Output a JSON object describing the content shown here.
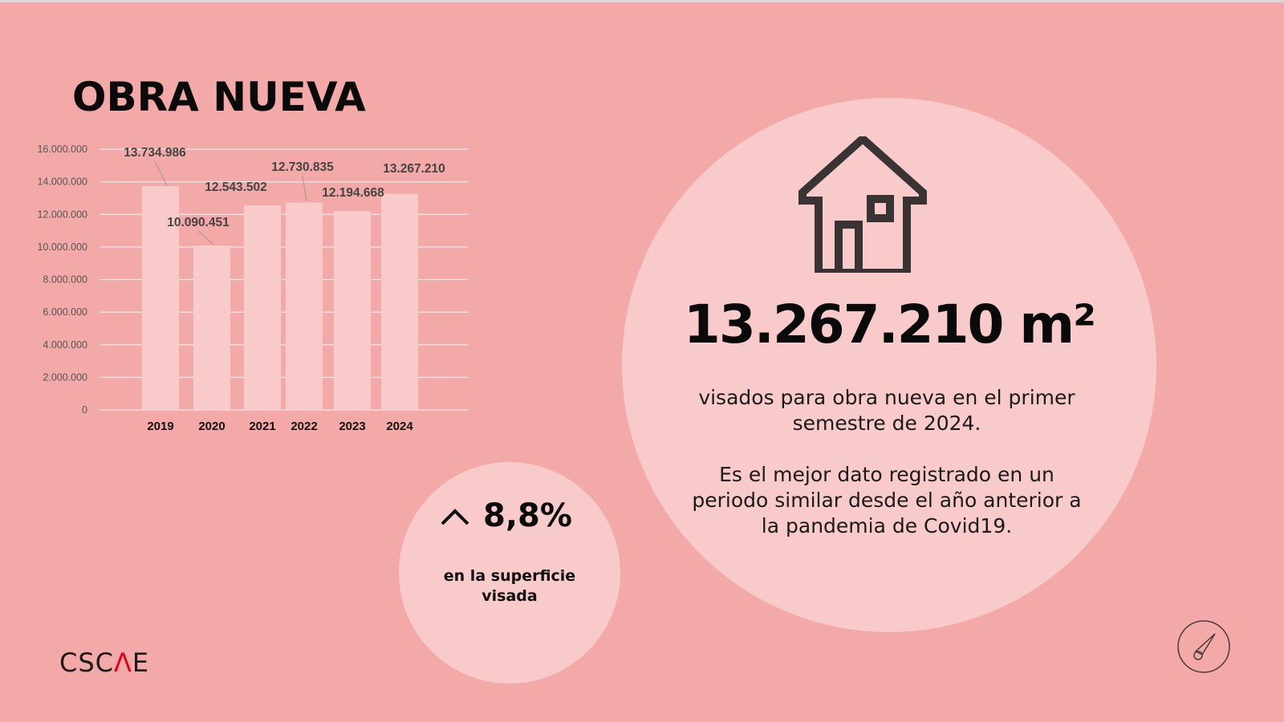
{
  "title": "OBRA NUEVA",
  "chart_data": {
    "type": "bar",
    "title": "",
    "xlabel": "",
    "ylabel": "",
    "categories": [
      "2019",
      "2020",
      "2021",
      "2022",
      "2023",
      "2024"
    ],
    "values": [
      13734986,
      10090451,
      12543502,
      12730835,
      12194668,
      13267210
    ],
    "data_labels": [
      "13.734.986",
      "10.090.451",
      "12.543.502",
      "12.730.835",
      "12.194.668",
      "13.267.210"
    ],
    "ylim": [
      0,
      16000000
    ],
    "yticks": [
      0,
      2000000,
      4000000,
      6000000,
      8000000,
      10000000,
      12000000,
      14000000,
      16000000
    ],
    "ytick_labels": [
      "0",
      "2.000.000",
      "4.000.000",
      "6.000.000",
      "8.000.000",
      "10.000.000",
      "12.000.000",
      "14.000.000",
      "16.000.000"
    ],
    "grid": true,
    "bar_color": "#F9CACA"
  },
  "highlight": {
    "value": "13.267.210 m²",
    "description_1": "visados para obra nueva en el primer semestre de 2024.",
    "description_2": "Es el mejor dato registrado en un periodo similar desde el año anterior a la pandemia de Covid19.",
    "icon": "house-icon"
  },
  "change": {
    "value": "8,8%",
    "label": "en la superficie visada",
    "icon": "chevron-up-icon"
  },
  "logo": {
    "prefix": "CSC",
    "accent": "Λ",
    "suffix": "E",
    "accent_color": "#E2001A"
  },
  "colors": {
    "background": "#F3A9A7",
    "circle": "#F9CACA",
    "icon": "#3a3333"
  }
}
